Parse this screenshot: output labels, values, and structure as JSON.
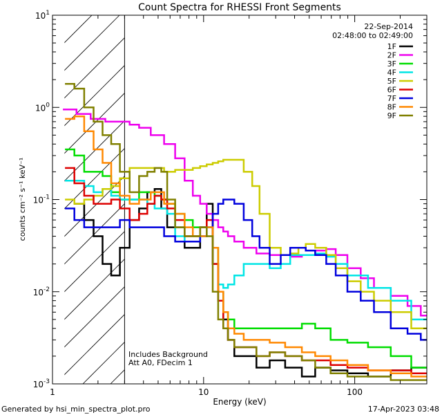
{
  "chart_data": {
    "type": "line",
    "title": "Count Spectra for RHESSI Front Segments",
    "xlabel": "Energy (keV)",
    "ylabel": "counts cm⁻² s⁻¹ keV⁻¹",
    "xscale": "log",
    "yscale": "log",
    "xlim": [
      1,
      300
    ],
    "ylim": [
      0.001,
      10
    ],
    "x_ticks": [
      {
        "value": 1,
        "label": "1"
      },
      {
        "value": 10,
        "label": "10"
      },
      {
        "value": 100,
        "label": "100"
      }
    ],
    "y_ticks": [
      {
        "value": 0.001,
        "base": "10",
        "exp": "-3"
      },
      {
        "value": 0.01,
        "base": "10",
        "exp": "-2"
      },
      {
        "value": 0.1,
        "base": "10",
        "exp": "-1"
      },
      {
        "value": 1,
        "base": "10",
        "exp": "0"
      },
      {
        "value": 10,
        "base": "10",
        "exp": "1"
      }
    ],
    "legend": {
      "date": "22-Sep-2014",
      "time_range": "02:48:00 to 02:49:00",
      "placement": "top-right"
    },
    "annotations": [
      "Includes Background",
      "Att A0, FDecim 1"
    ],
    "shaded_region": {
      "xmin": 1.2,
      "xmax": 3.0,
      "style": "diagonal-hatch"
    },
    "series": [
      {
        "name": "1F",
        "color": "#000000",
        "x": [
          1.5,
          1.75,
          2.0,
          2.3,
          2.6,
          3.0,
          3.5,
          4.0,
          4.5,
          5.0,
          5.5,
          6,
          7,
          8,
          9,
          10,
          11,
          12,
          13,
          14,
          15,
          17,
          20,
          25,
          30,
          40,
          50,
          60,
          80,
          100,
          150,
          200,
          280
        ],
        "y": [
          0.09,
          0.06,
          0.04,
          0.02,
          0.015,
          0.03,
          0.06,
          0.08,
          0.12,
          0.13,
          0.08,
          0.05,
          0.05,
          0.03,
          0.03,
          0.05,
          0.09,
          0.02,
          0.01,
          0.005,
          0.003,
          0.002,
          0.002,
          0.0015,
          0.0018,
          0.0015,
          0.0012,
          0.0015,
          0.0014,
          0.0013,
          0.0012,
          0.0014,
          0.0015
        ]
      },
      {
        "name": "2F",
        "color": "#ee00ee",
        "x": [
          1.3,
          1.6,
          2.0,
          2.5,
          3.0,
          3.5,
          4.0,
          5.0,
          6,
          7,
          8,
          9,
          10,
          11,
          12,
          13,
          14,
          15,
          17,
          20,
          25,
          30,
          35,
          40,
          50,
          60,
          70,
          80,
          100,
          120,
          150,
          200,
          250,
          300
        ],
        "y": [
          0.95,
          0.85,
          0.75,
          0.7,
          0.7,
          0.65,
          0.6,
          0.5,
          0.4,
          0.28,
          0.16,
          0.11,
          0.09,
          0.07,
          0.06,
          0.05,
          0.045,
          0.04,
          0.035,
          0.03,
          0.026,
          0.025,
          0.025,
          0.024,
          0.025,
          0.028,
          0.029,
          0.025,
          0.018,
          0.014,
          0.011,
          0.009,
          0.007,
          0.0055
        ]
      },
      {
        "name": "3F",
        "color": "#00dd00",
        "x": [
          1.3,
          1.5,
          1.75,
          2.0,
          2.3,
          2.6,
          3.0,
          3.5,
          4.0,
          4.5,
          5.0,
          5.5,
          6,
          7,
          8,
          9,
          10,
          11,
          12,
          13,
          14,
          15,
          17,
          20,
          25,
          30,
          40,
          50,
          60,
          80,
          100,
          150,
          200,
          280
        ],
        "y": [
          0.35,
          0.3,
          0.2,
          0.2,
          0.18,
          0.12,
          0.1,
          0.1,
          0.12,
          0.12,
          0.11,
          0.1,
          0.09,
          0.07,
          0.06,
          0.05,
          0.05,
          0.05,
          0.03,
          0.01,
          0.006,
          0.005,
          0.004,
          0.004,
          0.004,
          0.004,
          0.004,
          0.0045,
          0.004,
          0.003,
          0.0028,
          0.0025,
          0.002,
          0.0015
        ]
      },
      {
        "name": "4F",
        "color": "#00e5e5",
        "x": [
          1.3,
          1.5,
          1.75,
          2.0,
          2.3,
          2.6,
          3.0,
          3.5,
          4.0,
          4.5,
          5.0,
          5.5,
          6,
          7,
          8,
          9,
          10,
          11,
          12,
          13,
          14,
          15,
          17,
          20,
          25,
          30,
          35,
          40,
          50,
          60,
          70,
          80,
          100,
          150,
          200,
          280
        ],
        "y": [
          0.16,
          0.16,
          0.14,
          0.12,
          0.13,
          0.11,
          0.1,
          0.1,
          0.1,
          0.09,
          0.08,
          0.08,
          0.07,
          0.04,
          0.035,
          0.035,
          0.04,
          0.05,
          0.02,
          0.012,
          0.011,
          0.012,
          0.015,
          0.02,
          0.02,
          0.018,
          0.02,
          0.025,
          0.025,
          0.026,
          0.024,
          0.02,
          0.015,
          0.011,
          0.008,
          0.005
        ]
      },
      {
        "name": "5F",
        "color": "#cccc00",
        "x": [
          1.3,
          1.5,
          1.75,
          2.0,
          2.3,
          2.6,
          3.0,
          3.5,
          4.0,
          5.0,
          6,
          7,
          8,
          9,
          10,
          11,
          12,
          13,
          14,
          15,
          17,
          20,
          22,
          25,
          30,
          35,
          40,
          45,
          50,
          60,
          70,
          80,
          100,
          120,
          150,
          200,
          280
        ],
        "y": [
          0.1,
          0.09,
          0.1,
          0.11,
          0.13,
          0.14,
          0.17,
          0.22,
          0.22,
          0.22,
          0.2,
          0.21,
          0.21,
          0.22,
          0.23,
          0.24,
          0.25,
          0.26,
          0.27,
          0.27,
          0.27,
          0.2,
          0.14,
          0.07,
          0.03,
          0.025,
          0.026,
          0.03,
          0.033,
          0.03,
          0.025,
          0.018,
          0.013,
          0.01,
          0.008,
          0.006,
          0.004
        ]
      },
      {
        "name": "6F",
        "color": "#dd0000",
        "x": [
          1.3,
          1.5,
          1.75,
          2.0,
          2.3,
          2.6,
          3.0,
          3.5,
          4.0,
          4.5,
          5.0,
          5.5,
          6,
          7,
          8,
          9,
          10,
          11,
          12,
          13,
          14,
          15,
          17,
          20,
          25,
          30,
          40,
          50,
          60,
          80,
          100,
          150,
          200,
          280
        ],
        "y": [
          0.22,
          0.15,
          0.11,
          0.09,
          0.09,
          0.1,
          0.08,
          0.06,
          0.07,
          0.09,
          0.11,
          0.1,
          0.08,
          0.06,
          0.04,
          0.04,
          0.05,
          0.06,
          0.02,
          0.008,
          0.004,
          0.003,
          0.0025,
          0.0025,
          0.002,
          0.0022,
          0.002,
          0.0018,
          0.0018,
          0.0016,
          0.0015,
          0.0014,
          0.0014,
          0.0013
        ]
      },
      {
        "name": "7F",
        "color": "#0000dd",
        "x": [
          1.3,
          1.5,
          1.75,
          2.0,
          2.3,
          2.6,
          3.0,
          3.5,
          4.0,
          5.0,
          6,
          7,
          8,
          9,
          10,
          11,
          12,
          13,
          14,
          15,
          17,
          20,
          22,
          25,
          30,
          35,
          40,
          45,
          50,
          60,
          70,
          80,
          100,
          120,
          150,
          200,
          250,
          300
        ],
        "y": [
          0.08,
          0.06,
          0.05,
          0.05,
          0.05,
          0.05,
          0.06,
          0.05,
          0.05,
          0.05,
          0.04,
          0.035,
          0.035,
          0.035,
          0.04,
          0.05,
          0.07,
          0.09,
          0.1,
          0.1,
          0.09,
          0.06,
          0.04,
          0.03,
          0.02,
          0.025,
          0.03,
          0.03,
          0.028,
          0.025,
          0.02,
          0.015,
          0.01,
          0.008,
          0.006,
          0.004,
          0.0035,
          0.003
        ]
      },
      {
        "name": "8F",
        "color": "#ff8800",
        "x": [
          1.3,
          1.5,
          1.75,
          2.0,
          2.3,
          2.6,
          3.0,
          3.5,
          4.0,
          5.0,
          6,
          7,
          8,
          9,
          10,
          11,
          12,
          13,
          14,
          15,
          17,
          20,
          25,
          30,
          40,
          50,
          60,
          80,
          100,
          150,
          200,
          280
        ],
        "y": [
          0.75,
          0.8,
          0.55,
          0.35,
          0.25,
          0.15,
          0.11,
          0.09,
          0.1,
          0.12,
          0.09,
          0.07,
          0.05,
          0.04,
          0.04,
          0.05,
          0.03,
          0.01,
          0.006,
          0.004,
          0.0035,
          0.003,
          0.003,
          0.0028,
          0.0025,
          0.0022,
          0.002,
          0.0018,
          0.0016,
          0.0014,
          0.0013,
          0.0012
        ]
      },
      {
        "name": "9F",
        "color": "#808000",
        "x": [
          1.3,
          1.5,
          1.75,
          2.0,
          2.3,
          2.6,
          3.0,
          3.5,
          4.0,
          4.5,
          5.0,
          5.5,
          6,
          7,
          8,
          9,
          10,
          11,
          12,
          13,
          14,
          15,
          17,
          20,
          25,
          30,
          40,
          50,
          60,
          80,
          100,
          150,
          200,
          280
        ],
        "y": [
          1.8,
          1.6,
          1.0,
          0.7,
          0.5,
          0.4,
          0.2,
          0.12,
          0.18,
          0.2,
          0.22,
          0.2,
          0.1,
          0.05,
          0.04,
          0.04,
          0.05,
          0.04,
          0.01,
          0.005,
          0.004,
          0.003,
          0.0025,
          0.0025,
          0.002,
          0.0022,
          0.002,
          0.0018,
          0.0015,
          0.0013,
          0.0012,
          0.0012,
          0.0011,
          0.0011
        ]
      }
    ]
  },
  "footer": {
    "generated": "Generated by hsi_min_spectra_plot.pro",
    "datetime": "17-Apr-2023 03:48"
  }
}
